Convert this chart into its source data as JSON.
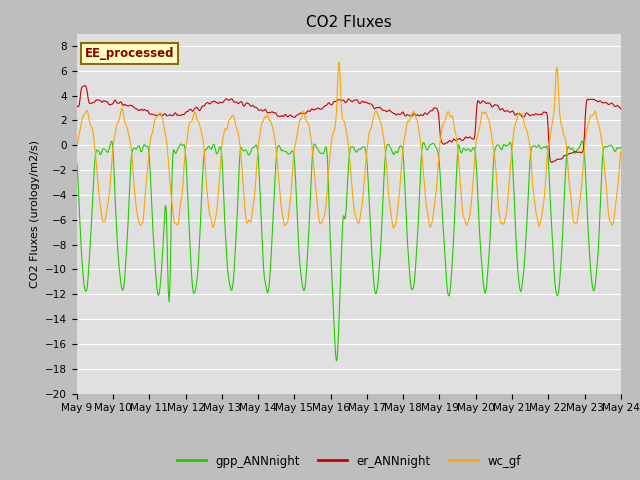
{
  "title": "CO2 Fluxes",
  "ylabel": "CO2 Fluxes (urology/m2/s)",
  "ylim": [
    -20,
    9
  ],
  "yticks": [
    -20,
    -18,
    -16,
    -14,
    -12,
    -10,
    -8,
    -6,
    -4,
    -2,
    0,
    2,
    4,
    6,
    8
  ],
  "annotation_text": "EE_processed",
  "annotation_color": "#8B0000",
  "annotation_bg": "#FFFFC0",
  "annotation_border": "#8B6914",
  "line_colors": {
    "gpp": "#22CC00",
    "er": "#CC0000",
    "wc": "#FFA500"
  },
  "line_width": 0.8,
  "legend_labels": [
    "gpp_ANNnight",
    "er_ANNnight",
    "wc_gf"
  ],
  "fig_bg_color": "#C8C8C8",
  "plot_bg_color": "#E8E8E8",
  "grid_color": "#FFFFFF",
  "title_fontsize": 11,
  "label_fontsize": 8,
  "tick_fontsize": 7.5
}
